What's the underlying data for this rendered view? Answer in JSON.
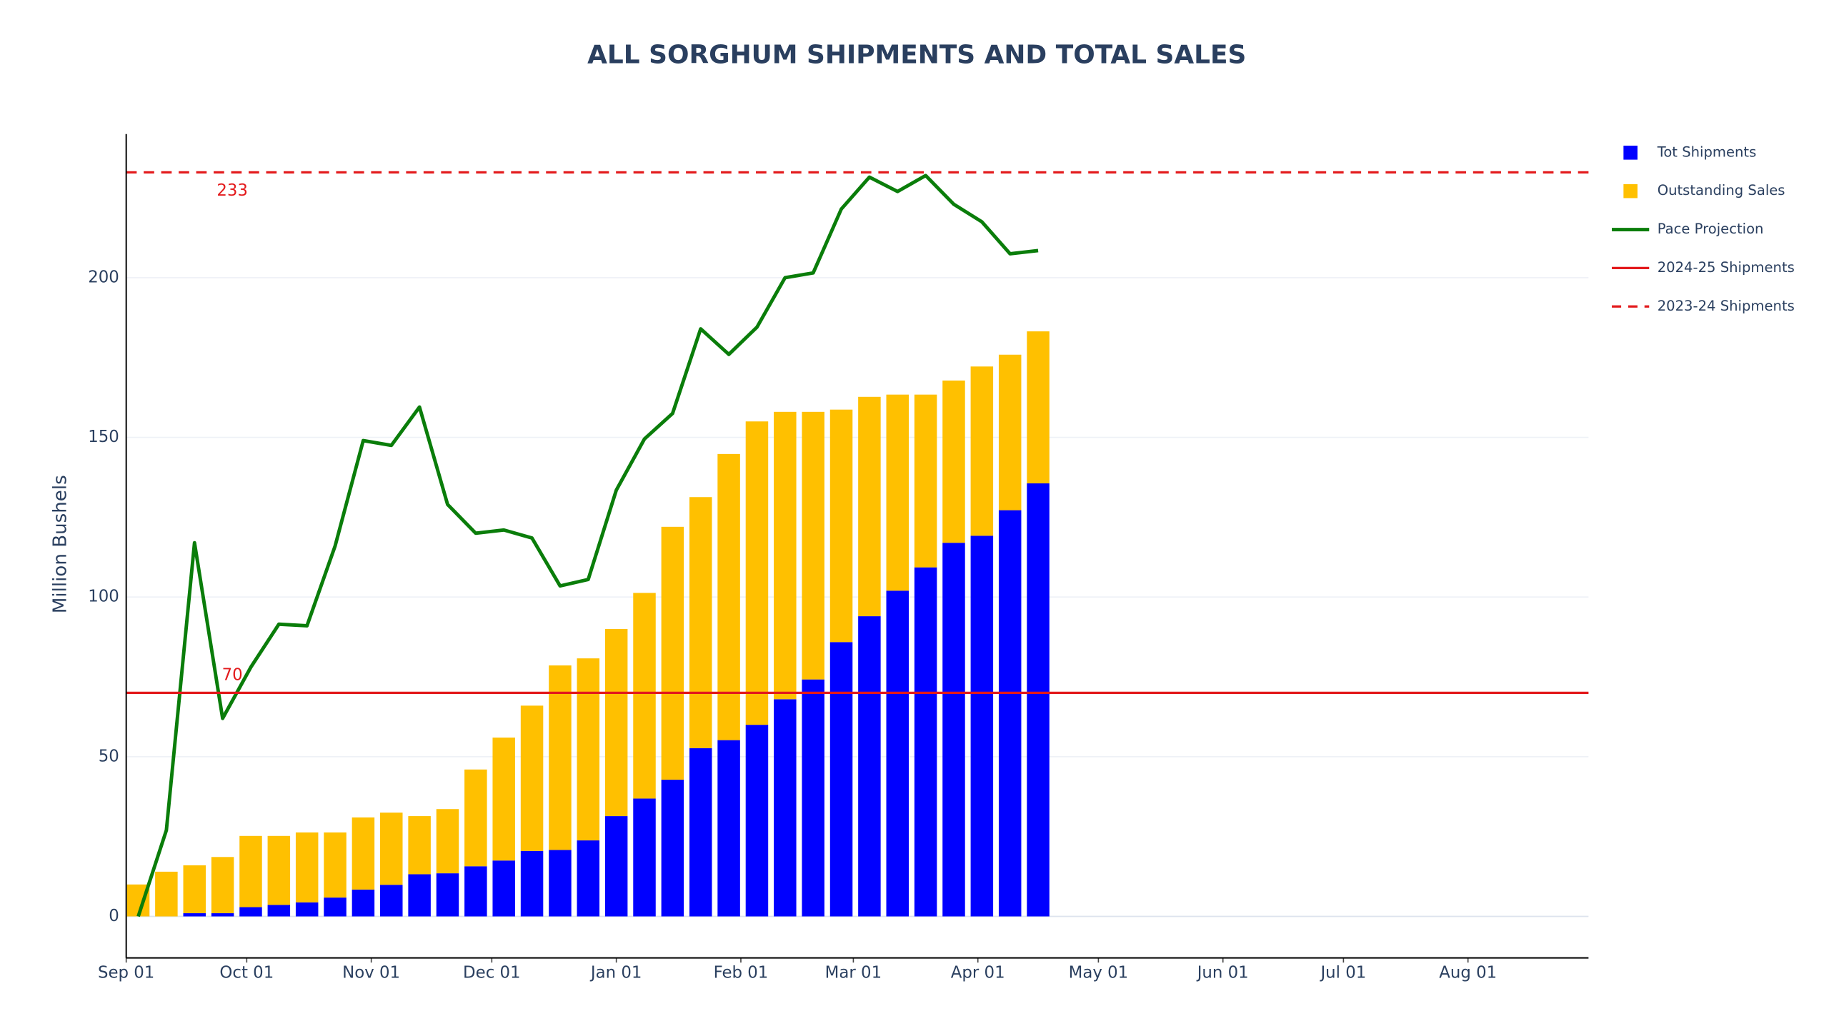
{
  "chart_data": {
    "type": "bar",
    "title": "ALL SORGHUM SHIPMENTS AND TOTAL SALES",
    "y_label": "Million Bushels",
    "stacked": true,
    "x": [
      "Sep 04",
      "Sep 11",
      "Sep 18",
      "Sep 25",
      "Oct 02",
      "Oct 09",
      "Oct 16",
      "Oct 23",
      "Oct 30",
      "Nov 06",
      "Nov 13",
      "Nov 20",
      "Nov 27",
      "Dec 04",
      "Dec 11",
      "Dec 18",
      "Dec 25",
      "Jan 01",
      "Jan 08",
      "Jan 15",
      "Jan 22",
      "Jan 29",
      "Feb 05",
      "Feb 12",
      "Feb 19",
      "Feb 26",
      "Mar 05",
      "Mar 12",
      "Mar 19",
      "Mar 26",
      "Apr 02",
      "Apr 09",
      "Apr 16"
    ],
    "series": [
      {
        "name": "Tot Shipments",
        "type": "bar",
        "color": "#0000ff",
        "values": [
          0,
          0,
          1,
          1,
          2.9,
          3.6,
          4.4,
          5.9,
          8.4,
          9.9,
          13.2,
          13.5,
          15.7,
          17.5,
          20.5,
          20.8,
          23.8,
          31.4,
          36.9,
          42.8,
          52.7,
          55.2,
          60,
          68,
          74.2,
          85.9,
          94,
          102,
          109.3,
          117,
          119.2,
          127.2,
          135.6
        ]
      },
      {
        "name": "Outstanding Sales",
        "type": "bar",
        "color": "#ffc000",
        "values": [
          10,
          14,
          15,
          17.6,
          22.3,
          21.6,
          21.9,
          20.4,
          22.6,
          22.6,
          18.2,
          20.1,
          30.3,
          38.5,
          45.5,
          57.8,
          57,
          58.6,
          64.4,
          79.2,
          78.6,
          89.6,
          95,
          90,
          83.8,
          72.8,
          68.7,
          61.4,
          54.1,
          50.8,
          53,
          48.7,
          47.6
        ]
      },
      {
        "name": "Pace Projection",
        "type": "line",
        "color": "#0a7d0a",
        "values": [
          0,
          27,
          117,
          62,
          78,
          91.5,
          91,
          116,
          149,
          147.5,
          159.5,
          129,
          120,
          121,
          118.5,
          103.5,
          105.5,
          133.5,
          149.5,
          157.5,
          184,
          176,
          184.5,
          200,
          201.5,
          221.5,
          231.5,
          227,
          232,
          223,
          217.5,
          207.5,
          208.5
        ]
      }
    ],
    "hlines": [
      {
        "name": "2024-25 Shipments",
        "value": 70,
        "color": "#e31a1c",
        "dash": false
      },
      {
        "name": "2023-24 Shipments",
        "value": 233,
        "color": "#e31a1c",
        "dash": true
      }
    ],
    "xlim": [
      "Sep 01",
      "Aug 31"
    ],
    "xticks": [
      "Sep 01",
      "Oct 01",
      "Nov 01",
      "Dec 01",
      "Jan 01",
      "Feb 01",
      "Mar 01",
      "Apr 01",
      "May 01",
      "Jun 01",
      "Jul 01",
      "Aug 01"
    ],
    "ylim": [
      -13,
      245
    ],
    "yticks": [
      0,
      50,
      100,
      150,
      200
    ],
    "grid": true,
    "legend": "right"
  }
}
